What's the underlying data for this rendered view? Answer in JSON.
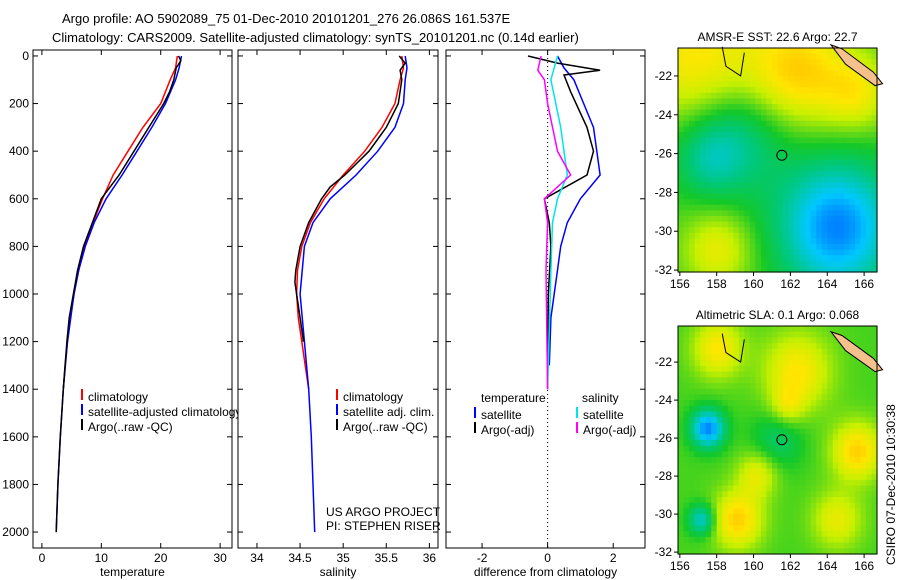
{
  "title_line1": "Argo profile: AO 5902089_75 01-Dec-2010 20101201_276 26.086S 161.537E",
  "title_line2": "Climatology: CARS2009. Satellite-adjusted climatology: synTS_20101201.nc (0.14d earlier)",
  "side_label": "CSIRO 07-Dec-2010 10:30:38",
  "colors": {
    "climatology": "#ff0000",
    "satellite": "#0000ff",
    "argo": "#000000",
    "sal_satellite": "#00e5e5",
    "sal_argo": "#ff00ff"
  },
  "chart_data": [
    {
      "type": "line",
      "xlabel": "temperature",
      "ylabel": "",
      "xlim": [
        -1.5,
        32
      ],
      "ylim": [
        2067,
        -25
      ],
      "xticks": [
        0,
        10,
        20,
        30
      ],
      "yticks": [
        0,
        200,
        400,
        600,
        800,
        1000,
        1200,
        1400,
        1600,
        1800,
        2000
      ],
      "legend": [
        "climatology",
        "satellite-adjusted climatology",
        "Argo(..raw -QC)"
      ],
      "series": [
        {
          "name": "climatology",
          "color": "#ff0000",
          "depth": [
            0,
            50,
            100,
            200,
            300,
            400,
            500,
            600,
            700,
            800,
            900,
            1000,
            1100,
            1200,
            1300,
            1400
          ],
          "values": [
            22.8,
            22.5,
            21.6,
            20,
            17,
            14.5,
            12,
            10.2,
            8.6,
            7.2,
            6.2,
            5.4,
            4.8,
            4.3,
            3.9,
            3.6
          ]
        },
        {
          "name": "satellite-adjusted climatology",
          "color": "#0000ff",
          "depth": [
            0,
            50,
            100,
            200,
            300,
            400,
            500,
            600,
            700,
            800,
            900,
            1000,
            1200,
            1400,
            1600,
            1800,
            2000
          ],
          "values": [
            23.5,
            23.1,
            22.5,
            20.8,
            18.5,
            16,
            13.5,
            10.8,
            8.8,
            7.3,
            6.2,
            5.4,
            4.3,
            3.6,
            3.1,
            2.7,
            2.4
          ]
        },
        {
          "name": "Argo(..raw -QC)",
          "color": "#000000",
          "depth": [
            0,
            20,
            50,
            100,
            150,
            200,
            300,
            400,
            500,
            600,
            700,
            800,
            900,
            1000,
            1100,
            1200,
            1400,
            1600,
            1800,
            2000
          ],
          "values": [
            23,
            23.4,
            22.6,
            22.2,
            21.5,
            20.5,
            18,
            15.5,
            13,
            10,
            8.5,
            7,
            6,
            5.3,
            4.6,
            4.2,
            3.6,
            3.1,
            2.7,
            2.4
          ]
        }
      ]
    },
    {
      "type": "line",
      "xlabel": "salinity",
      "ylabel": "",
      "xlim": [
        33.78,
        36.1
      ],
      "ylim": [
        2067,
        -25
      ],
      "xticks": [
        34,
        34.5,
        35,
        35.5,
        36
      ],
      "legend": [
        "climatology",
        "satellite adj. clim.",
        "Argo(..raw -QC)"
      ],
      "annotation": [
        "US ARGO PROJECT",
        "PI: STEPHEN RISER"
      ],
      "series": [
        {
          "name": "climatology",
          "color": "#ff0000",
          "depth": [
            0,
            50,
            100,
            200,
            300,
            400,
            500,
            600,
            700,
            800,
            900,
            1000,
            1100,
            1200,
            1300,
            1400
          ],
          "values": [
            35.68,
            35.7,
            35.66,
            35.6,
            35.45,
            35.25,
            35.0,
            34.78,
            34.62,
            34.52,
            34.47,
            34.46,
            34.48,
            34.52,
            34.56,
            34.6
          ]
        },
        {
          "name": "satellite adj. clim.",
          "color": "#0000ff",
          "depth": [
            0,
            50,
            100,
            200,
            300,
            400,
            500,
            600,
            700,
            800,
            1000,
            1200,
            1400,
            1600,
            1800,
            2000
          ],
          "values": [
            35.72,
            35.74,
            35.72,
            35.7,
            35.6,
            35.4,
            35.15,
            34.85,
            34.65,
            34.55,
            34.5,
            34.55,
            34.6,
            34.63,
            34.65,
            34.67
          ]
        },
        {
          "name": "Argo(..raw -QC)",
          "color": "#000000",
          "depth": [
            0,
            30,
            60,
            100,
            200,
            300,
            400,
            500,
            550,
            600,
            700,
            800,
            900,
            950,
            1000,
            1100,
            1200
          ],
          "values": [
            35.65,
            35.72,
            35.66,
            35.68,
            35.64,
            35.5,
            35.3,
            35.02,
            34.85,
            34.75,
            34.6,
            34.5,
            34.45,
            34.44,
            34.46,
            34.5,
            34.54
          ]
        }
      ]
    },
    {
      "type": "line",
      "xlabel": "difference from climatology",
      "ylabel": "",
      "xlim": [
        -3.1,
        2.97
      ],
      "ylim": [
        2067,
        -25
      ],
      "xticks": [
        -2,
        0,
        2
      ],
      "legend_headers": [
        "temperature",
        "salinity"
      ],
      "legend": [
        "satellite",
        "Argo(-adj)",
        "satellite",
        "Argo(-adj)"
      ],
      "series": [
        {
          "name": "temperature satellite",
          "color": "#0000ff",
          "depth": [
            0,
            50,
            100,
            200,
            300,
            400,
            500,
            600,
            700,
            800,
            900,
            1000,
            1100,
            1300
          ],
          "values": [
            0.3,
            0.5,
            0.8,
            1.1,
            1.4,
            1.5,
            1.6,
            1.0,
            0.6,
            0.4,
            0.3,
            0.2,
            0.1,
            0.05
          ]
        },
        {
          "name": "temperature Argo(-adj)",
          "color": "#000000",
          "depth": [
            0,
            30,
            60,
            80,
            150,
            300,
            400,
            500,
            600,
            700,
            800,
            1000,
            1400
          ],
          "values": [
            -0.6,
            0.3,
            1.6,
            0.5,
            0.7,
            1.2,
            1.4,
            1.2,
            -0.1,
            0.05,
            0.1,
            0.02,
            0
          ]
        },
        {
          "name": "salinity satellite",
          "color": "#00e5e5",
          "depth": [
            0,
            100,
            300,
            500,
            600,
            700,
            900,
            1400
          ],
          "values": [
            0.3,
            0.1,
            0.4,
            0.6,
            0.3,
            0.15,
            0.1,
            0
          ]
        },
        {
          "name": "salinity Argo(-adj)",
          "color": "#ff00ff",
          "depth": [
            0,
            60,
            100,
            200,
            400,
            500,
            600,
            700,
            900,
            1400
          ],
          "values": [
            -0.2,
            -0.3,
            -0.1,
            0,
            0.3,
            0.7,
            -0.1,
            0,
            -0.05,
            0
          ]
        }
      ]
    },
    {
      "type": "heatmap",
      "title": "AMSR-E SST: 22.6 Argo: 22.7",
      "xlim": [
        155.9,
        166.7
      ],
      "ylim": [
        -32.1,
        -20.56
      ],
      "xticks": [
        156,
        158,
        160,
        162,
        164,
        166
      ],
      "yticks": [
        -22,
        -24,
        -26,
        -28,
        -30,
        -32
      ],
      "marker": [
        161.537,
        -26.086
      ]
    },
    {
      "type": "heatmap",
      "title": "Altimetric SLA: 0.1 Argo: 0.068",
      "xlim": [
        155.9,
        166.7
      ],
      "ylim": [
        -32.1,
        -20.1
      ],
      "xticks": [
        156,
        158,
        160,
        162,
        164,
        166
      ],
      "yticks": [
        -22,
        -24,
        -26,
        -28,
        -30,
        -32
      ],
      "marker": [
        161.537,
        -26.086
      ]
    }
  ]
}
